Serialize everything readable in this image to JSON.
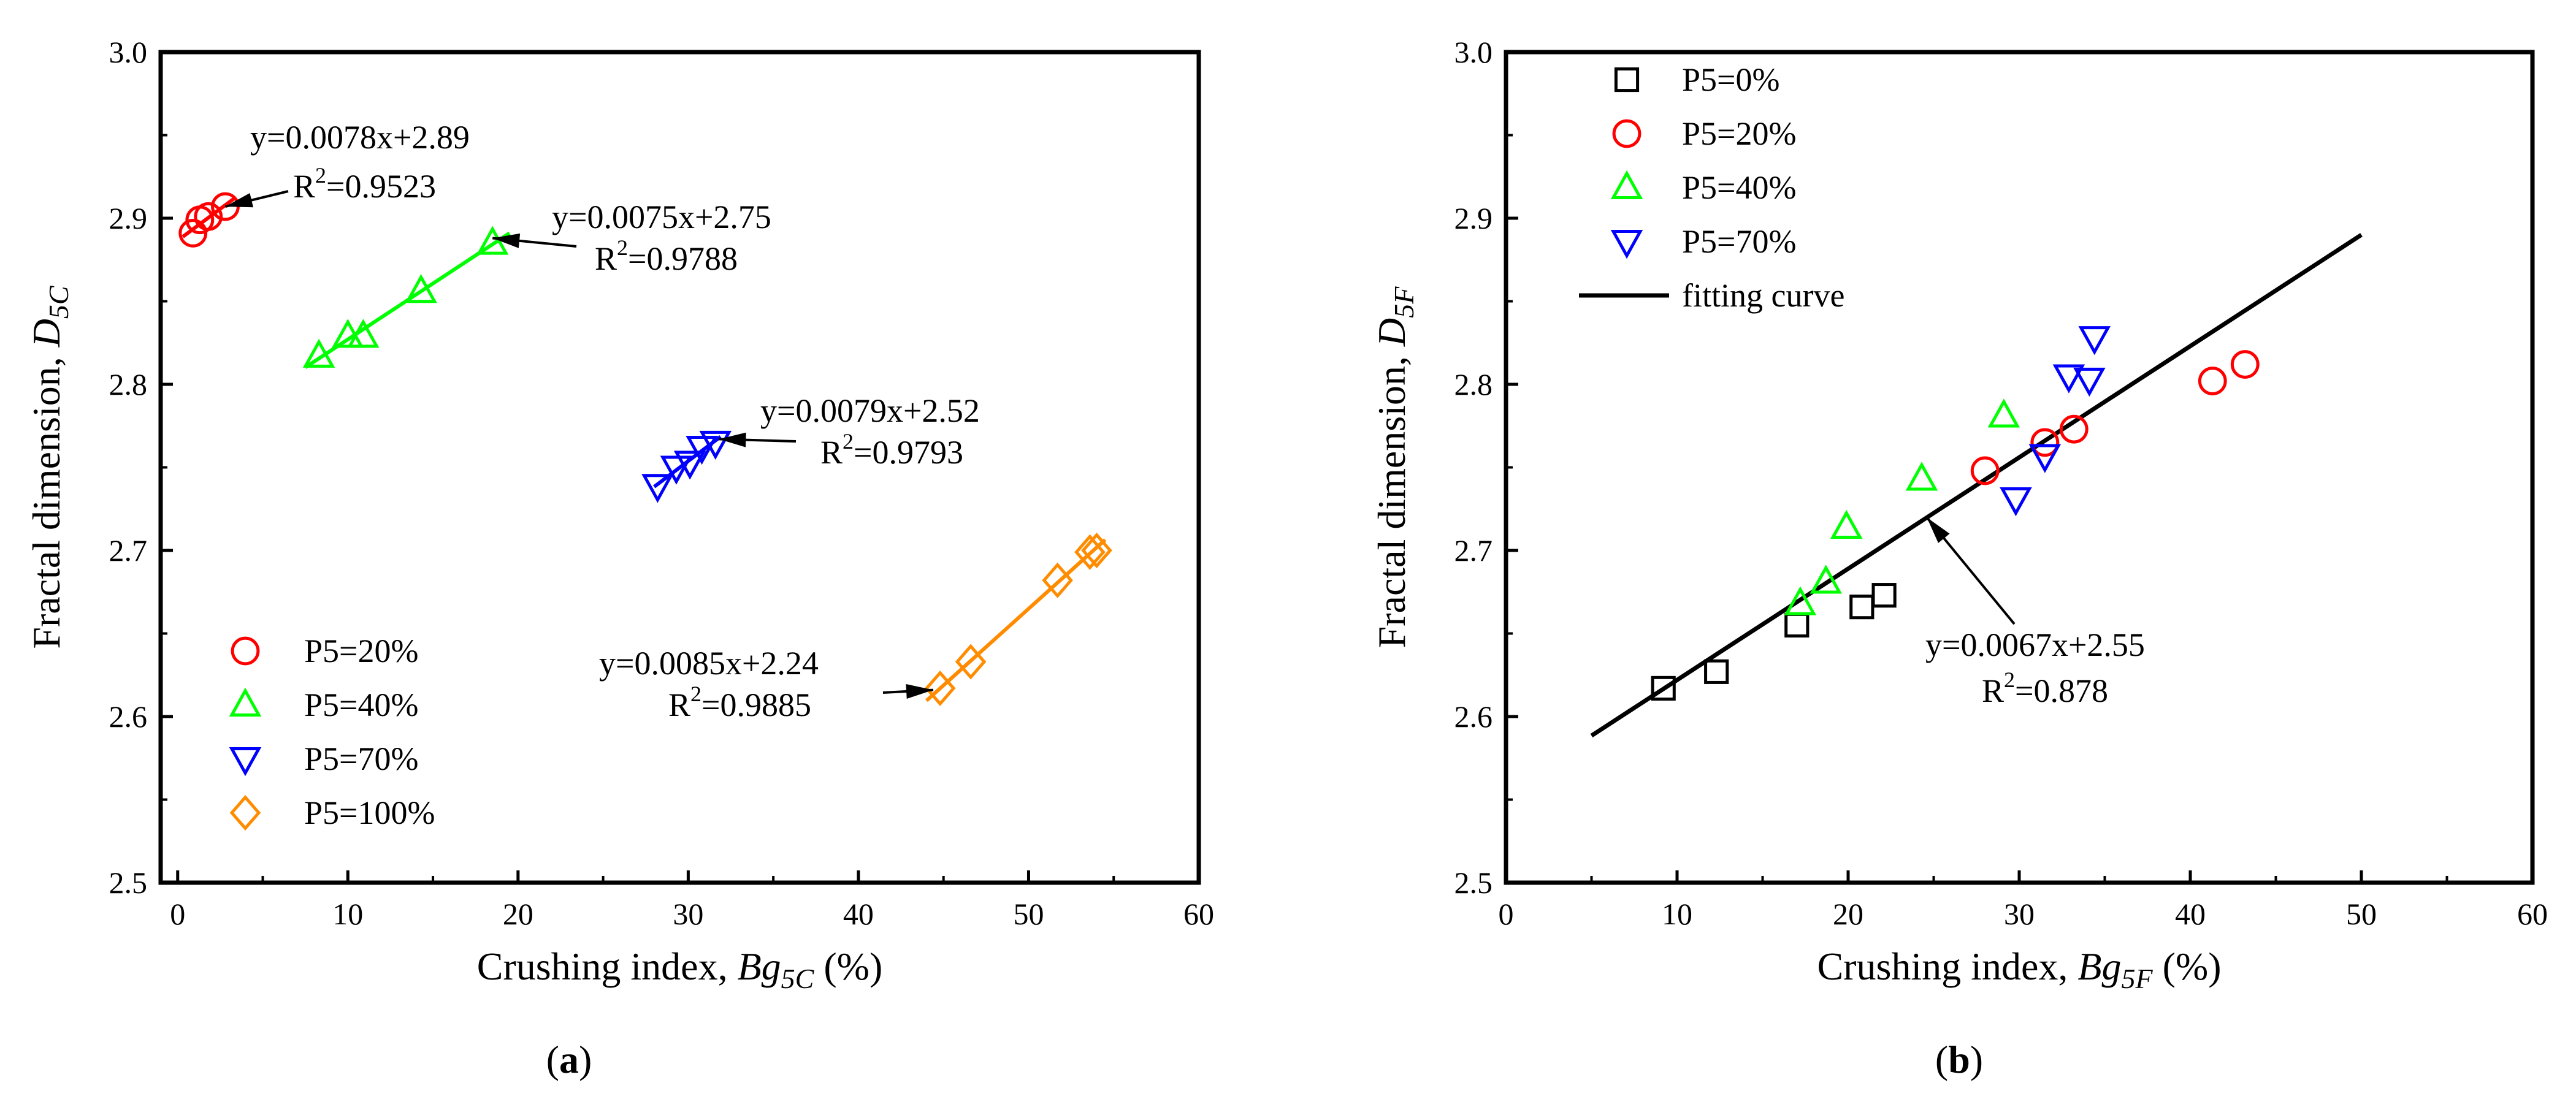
{
  "chart_data": [
    {
      "id": "a",
      "type": "scatter",
      "panel_label": "a",
      "xlabel": {
        "main": "Crushing index, ",
        "var": "Bg",
        "sub": "5C",
        "unit": " (%)"
      },
      "ylabel": {
        "main": "Fractal dimension, ",
        "var": "D",
        "sub": "5C"
      },
      "xlim": [
        -1,
        60
      ],
      "ylim": [
        2.5,
        3.0
      ],
      "xticks": [
        0,
        10,
        20,
        30,
        40,
        50,
        60
      ],
      "yticks": [
        2.5,
        2.6,
        2.7,
        2.8,
        2.9,
        3.0
      ],
      "legend_position": "bottom-left",
      "series": [
        {
          "name": "P5=20%",
          "marker": "circle",
          "color": "#ff0000",
          "x": [
            0.9,
            1.3,
            1.8,
            2.8
          ],
          "y": [
            2.891,
            2.899,
            2.901,
            2.907
          ],
          "fit": {
            "x0": 0.3,
            "x1": 3.3,
            "equation": "y=0.0078x+2.89",
            "r2": "0.9523"
          }
        },
        {
          "name": "P5=40%",
          "marker": "triangle-up",
          "color": "#00ff00",
          "x": [
            8.3,
            10.0,
            10.9,
            14.3,
            18.5
          ],
          "y": [
            2.817,
            2.829,
            2.829,
            2.856,
            2.885
          ],
          "fit": {
            "x0": 7.5,
            "x1": 19.5,
            "equation": "y=0.0075x+2.75",
            "r2": "0.9788"
          }
        },
        {
          "name": "P5=70%",
          "marker": "triangle-down",
          "color": "#0000ff",
          "x": [
            28.2,
            29.3,
            30.1,
            30.8,
            31.6
          ],
          "y": [
            2.739,
            2.75,
            2.753,
            2.762,
            2.765
          ],
          "fit": {
            "x0": 28.0,
            "x1": 31.9,
            "equation": "y=0.0079x+2.52",
            "r2": "0.9793"
          }
        },
        {
          "name": "P5=100%",
          "marker": "diamond",
          "color": "#ff8c00",
          "x": [
            44.8,
            46.6,
            51.7,
            53.6,
            54.0
          ],
          "y": [
            2.617,
            2.633,
            2.682,
            2.699,
            2.7
          ],
          "fit": {
            "x0": 44.0,
            "x1": 54.5,
            "equation": "y=0.0085x+2.24",
            "r2": "0.9885"
          }
        }
      ]
    },
    {
      "id": "b",
      "type": "scatter",
      "panel_label": "b",
      "xlabel": {
        "main": "Crushing index, ",
        "var": "Bg",
        "sub": "5F",
        "unit": " (%)"
      },
      "ylabel": {
        "main": "Fractal dimension, ",
        "var": "D",
        "sub": "5F"
      },
      "xlim": [
        0,
        60
      ],
      "ylim": [
        2.5,
        3.0
      ],
      "xticks": [
        0,
        10,
        20,
        30,
        40,
        50,
        60
      ],
      "yticks": [
        2.5,
        2.6,
        2.7,
        2.8,
        2.9,
        3.0
      ],
      "legend_position": "top-left",
      "series": [
        {
          "name": "P5=0%",
          "marker": "square",
          "color": "#000000",
          "x": [
            9.2,
            12.3,
            17.0,
            20.8,
            22.1
          ],
          "y": [
            2.617,
            2.627,
            2.655,
            2.666,
            2.673
          ]
        },
        {
          "name": "P5=20%",
          "marker": "circle",
          "color": "#ff0000",
          "x": [
            28.0,
            31.5,
            33.2,
            41.3,
            43.2
          ],
          "y": [
            2.748,
            2.765,
            2.773,
            2.802,
            2.812
          ]
        },
        {
          "name": "P5=40%",
          "marker": "triangle-up",
          "color": "#00ff00",
          "x": [
            17.2,
            18.7,
            19.9,
            24.3,
            29.1
          ],
          "y": [
            2.668,
            2.681,
            2.714,
            2.743,
            2.781
          ]
        },
        {
          "name": "P5=70%",
          "marker": "triangle-down",
          "color": "#0000ff",
          "x": [
            29.8,
            31.5,
            32.9,
            34.1,
            34.4
          ],
          "y": [
            2.731,
            2.757,
            2.805,
            2.803,
            2.828
          ]
        }
      ],
      "fit": {
        "label": "fitting curve",
        "color": "#000000",
        "x0": 5,
        "x1": 50,
        "slope": 0.0067,
        "intercept": 2.555,
        "equation": "y=0.0067x+2.55",
        "r2": "0.878"
      }
    }
  ]
}
